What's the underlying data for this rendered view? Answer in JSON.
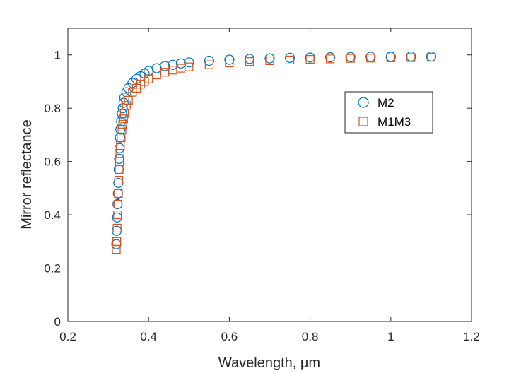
{
  "chart_data": {
    "type": "scatter",
    "xlabel": "Wavelength, μm",
    "ylabel": "Mirror reflectance",
    "xlim": [
      0.2,
      1.2
    ],
    "ylim": [
      0,
      1.1
    ],
    "xticks": [
      0.2,
      0.4,
      0.6,
      0.8,
      1,
      1.2
    ],
    "yticks": [
      0,
      0.2,
      0.4,
      0.6,
      0.8,
      1
    ],
    "xtick_labels": [
      "0.2",
      "0.4",
      "0.6",
      "0.8",
      "1",
      "1.2"
    ],
    "ytick_labels": [
      "0",
      "0.2",
      "0.4",
      "0.6",
      "0.8",
      "1"
    ],
    "grid": false,
    "legend_position": "right",
    "series": [
      {
        "name": "M2",
        "marker": "circle",
        "color": "#0072BD",
        "x": [
          0.32,
          0.321,
          0.322,
          0.323,
          0.324,
          0.325,
          0.326,
          0.327,
          0.328,
          0.329,
          0.33,
          0.332,
          0.334,
          0.336,
          0.338,
          0.34,
          0.345,
          0.35,
          0.36,
          0.37,
          0.38,
          0.39,
          0.4,
          0.42,
          0.44,
          0.46,
          0.48,
          0.5,
          0.55,
          0.6,
          0.65,
          0.7,
          0.75,
          0.8,
          0.85,
          0.9,
          0.95,
          1.0,
          1.05,
          1.1
        ],
        "y": [
          0.29,
          0.34,
          0.39,
          0.44,
          0.48,
          0.52,
          0.57,
          0.61,
          0.65,
          0.69,
          0.72,
          0.75,
          0.78,
          0.8,
          0.82,
          0.84,
          0.86,
          0.875,
          0.895,
          0.91,
          0.92,
          0.93,
          0.94,
          0.95,
          0.958,
          0.963,
          0.968,
          0.972,
          0.978,
          0.982,
          0.985,
          0.987,
          0.989,
          0.99,
          0.991,
          0.992,
          0.993,
          0.993,
          0.994,
          0.994
        ]
      },
      {
        "name": "M1M3",
        "marker": "square",
        "color": "#D95319",
        "x": [
          0.32,
          0.321,
          0.322,
          0.323,
          0.324,
          0.325,
          0.326,
          0.327,
          0.328,
          0.329,
          0.33,
          0.332,
          0.334,
          0.336,
          0.338,
          0.34,
          0.345,
          0.35,
          0.36,
          0.37,
          0.38,
          0.39,
          0.4,
          0.42,
          0.44,
          0.46,
          0.48,
          0.5,
          0.55,
          0.6,
          0.65,
          0.7,
          0.75,
          0.8,
          0.85,
          0.9,
          0.95,
          1.0,
          1.05,
          1.1
        ],
        "y": [
          0.27,
          0.3,
          0.35,
          0.4,
          0.44,
          0.48,
          0.53,
          0.57,
          0.6,
          0.63,
          0.66,
          0.69,
          0.72,
          0.74,
          0.76,
          0.78,
          0.81,
          0.83,
          0.86,
          0.875,
          0.89,
          0.9,
          0.91,
          0.925,
          0.935,
          0.943,
          0.95,
          0.955,
          0.963,
          0.97,
          0.975,
          0.978,
          0.981,
          0.983,
          0.985,
          0.987,
          0.988,
          0.989,
          0.99,
          0.991
        ]
      }
    ]
  }
}
